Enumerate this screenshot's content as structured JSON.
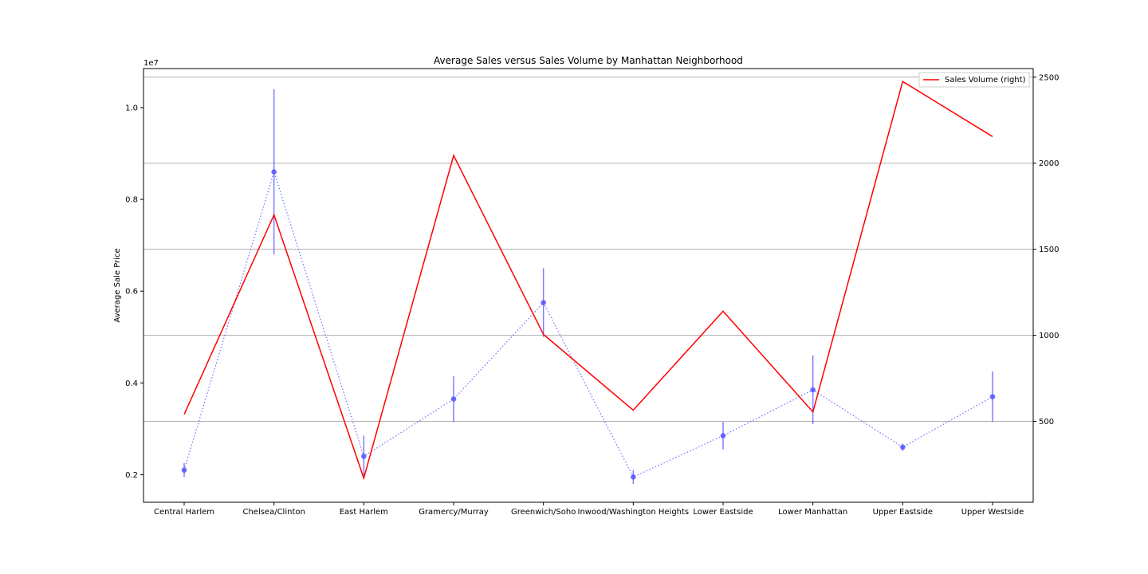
{
  "chart_data": {
    "type": "line",
    "title": "Average Sales versus Sales Volume by Manhattan Neighborhood",
    "ylabel": "Average Sale Price",
    "xlabel": "",
    "y_offset_text": "1e7",
    "categories": [
      "Central Harlem",
      "Chelsea/Clinton",
      "East Harlem",
      "Gramercy/Murray",
      "Greenwich/Soho",
      "Inwood/Washington Heights",
      "Lower Eastside",
      "Lower Manhattan",
      "Upper Eastside",
      "Upper Westside"
    ],
    "left_axis": {
      "ylim": [
        1400000,
        10850000
      ],
      "ticks": [
        2000000,
        4000000,
        6000000,
        8000000,
        10000000
      ],
      "tick_labels": [
        "0.2",
        "0.4",
        "0.6",
        "0.8",
        "1.0"
      ]
    },
    "right_axis": {
      "ylim": [
        30,
        2550
      ],
      "ticks": [
        500,
        1000,
        1500,
        2000,
        2500
      ],
      "tick_labels": [
        "500",
        "1000",
        "1500",
        "2000",
        "2500"
      ]
    },
    "grid": "horizontal (right axis)",
    "legend": {
      "position": "top-right",
      "entries": [
        "Sales Volume (right)"
      ]
    },
    "series": [
      {
        "axis": "left",
        "style": "dotted",
        "color": "#5555ff",
        "values": [
          2100000,
          8600000,
          2400000,
          3650000,
          5750000,
          1950000,
          2850000,
          3850000,
          2600000,
          3700000
        ],
        "error": [
          150000,
          1800000,
          450000,
          500000,
          750000,
          150000,
          300000,
          750000,
          80000,
          550000
        ]
      },
      {
        "name": "Sales Volume (right)",
        "axis": "right",
        "style": "solid",
        "color": "#ff0000",
        "values": [
          540,
          1700,
          170,
          2045,
          1005,
          565,
          1140,
          555,
          2475,
          2155
        ]
      }
    ]
  }
}
